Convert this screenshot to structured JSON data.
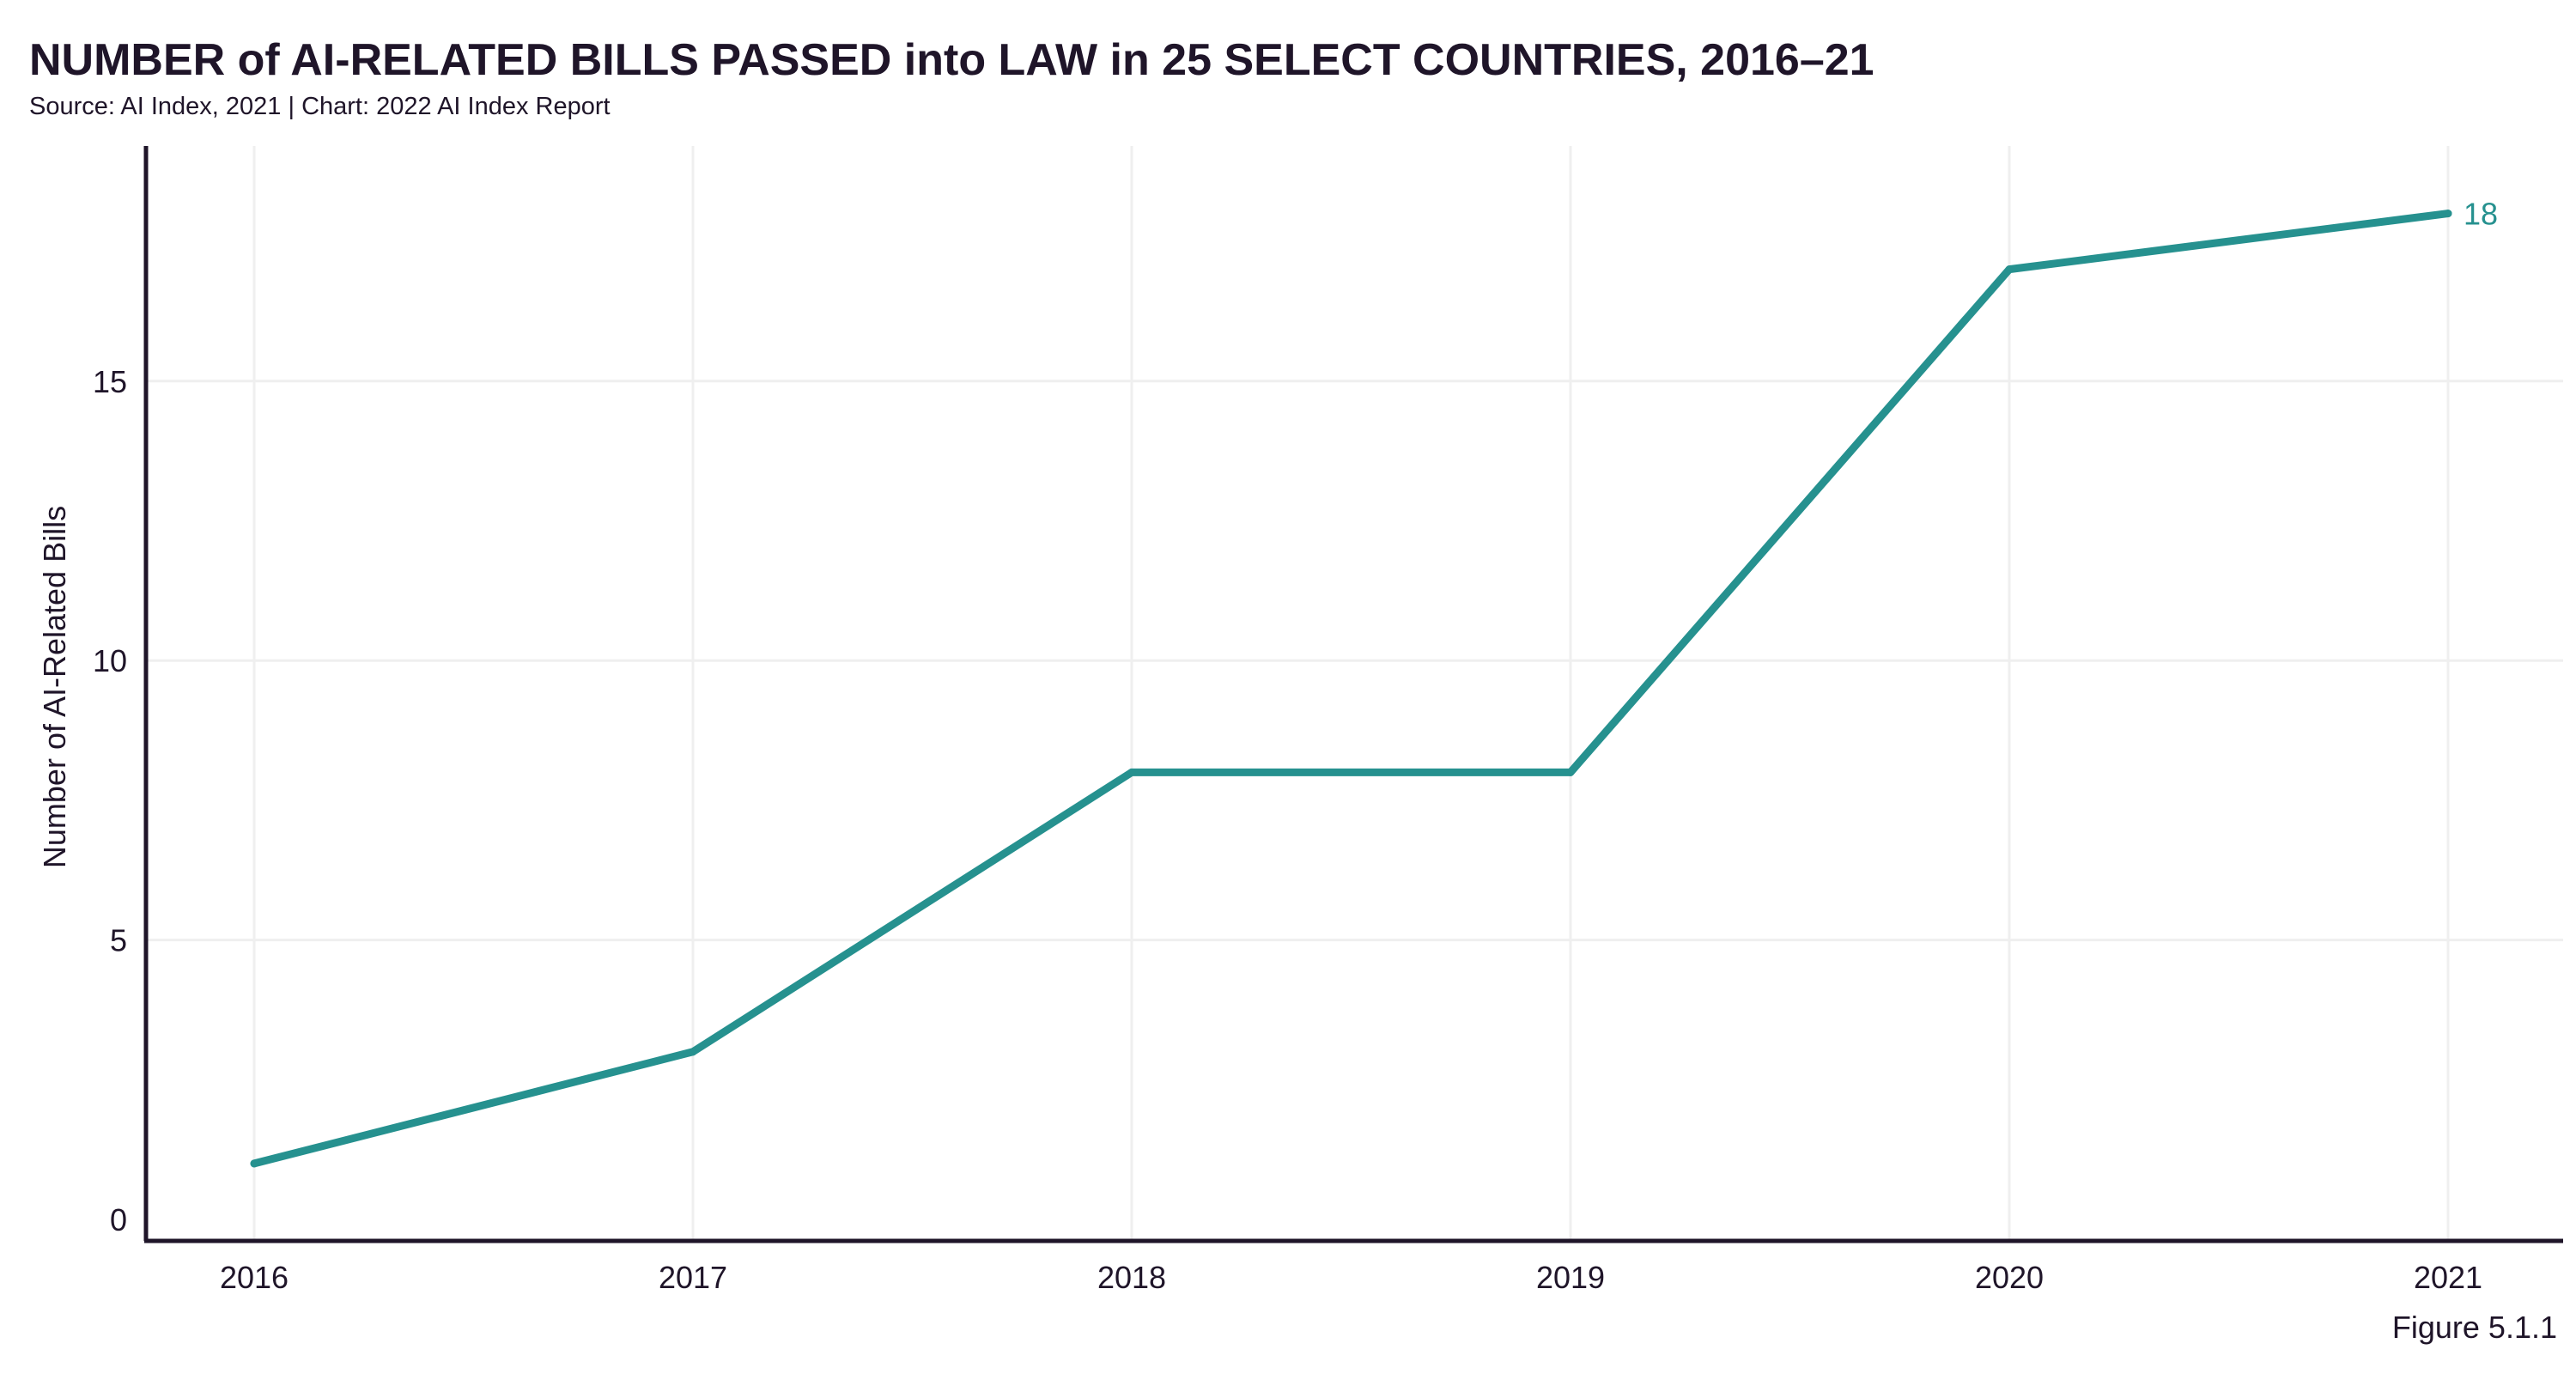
{
  "title": "NUMBER of AI-RELATED BILLS PASSED into LAW in 25 SELECT COUNTRIES, 2016–21",
  "subtitle": "Source: AI Index, 2021 | Chart: 2022 AI Index Report",
  "figure_label": "Figure 5.1.1",
  "colors": {
    "line": "#26918f",
    "axis": "#1f1529",
    "grid": "#efefef",
    "text": "#1f1529"
  },
  "chart_data": {
    "type": "line",
    "title": "NUMBER of AI-RELATED BILLS PASSED into LAW in 25 SELECT COUNTRIES, 2016–21",
    "xlabel": "",
    "ylabel": "Number of AI-Related Bills",
    "x": [
      "2016",
      "2017",
      "2018",
      "2019",
      "2020",
      "2021"
    ],
    "series": [
      {
        "values": [
          1,
          3,
          8,
          8,
          17,
          18
        ]
      }
    ],
    "yticks": [
      0,
      5,
      10,
      15
    ],
    "ylim": [
      0,
      18.9
    ],
    "end_label": "18",
    "grid": true,
    "legend": "none"
  }
}
